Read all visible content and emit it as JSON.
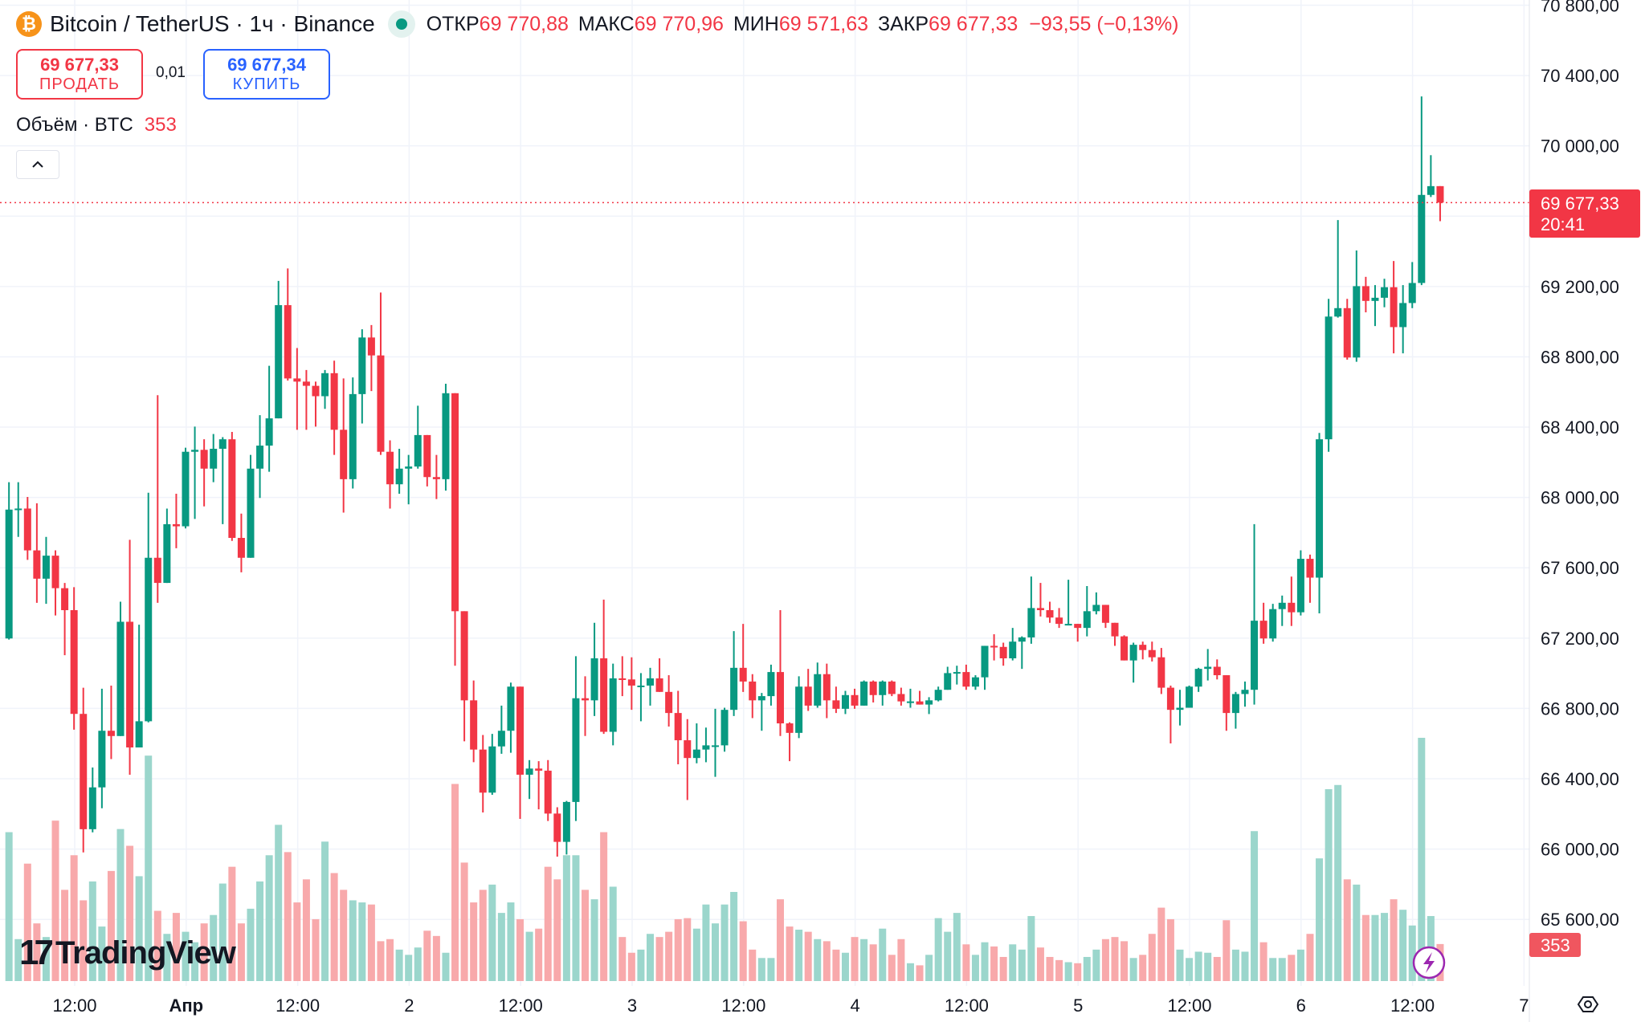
{
  "header": {
    "symbol_icon": "bitcoin-icon",
    "title": "Bitcoin / TetherUS · 1ч · Binance",
    "market_status": "open",
    "ohlc": [
      {
        "label": "ОТКР",
        "value": "69 770,88"
      },
      {
        "label": "МАКС",
        "value": "69 770,96"
      },
      {
        "label": "МИН",
        "value": "69 571,63"
      },
      {
        "label": "ЗАКР",
        "value": "69 677,33"
      }
    ],
    "change": "−93,55 (−0,13%)"
  },
  "trade": {
    "sell_price": "69 677,33",
    "sell_label": "ПРОДАТЬ",
    "spread": "0,01",
    "buy_price": "69 677,34",
    "buy_label": "КУПИТЬ"
  },
  "volume_legend": {
    "label": "Объём · BTC",
    "value": "353"
  },
  "logo": "TradingView",
  "colors": {
    "up": "#089981",
    "down": "#f23645",
    "up_volume": "#9bd6cc",
    "down_volume": "#f8a9ab",
    "grid": "#f0f3fa",
    "buy": "#2962ff"
  },
  "icons": {
    "collapse": "chevron-up-icon",
    "alerts": "lightning-icon",
    "settings": "settings-icon"
  },
  "chart_data": {
    "type": "candlestick",
    "interval": "1ч",
    "y_ticks": [
      70800,
      70400,
      70000,
      69600,
      69200,
      68800,
      68400,
      68000,
      67600,
      67200,
      66800,
      66400,
      66000,
      65600
    ],
    "y_tick_labels": [
      "70 800,00",
      "70 400,00",
      "70 000,00",
      "",
      "69 200,00",
      "68 800,00",
      "68 400,00",
      "68 000,00",
      "67 600,00",
      "67 200,00",
      "66 800,00",
      "66 400,00",
      "66 000,00",
      "65 600,00"
    ],
    "x_tick_labels": [
      "12:00",
      "Апр",
      "12:00",
      "2",
      "12:00",
      "3",
      "12:00",
      "4",
      "12:00",
      "5",
      "12:00",
      "6",
      "12:00",
      "7"
    ],
    "last_price": 69677.33,
    "last_price_label": "69 677,33",
    "countdown": "20:41",
    "last_volume_label": "353",
    "grid": true,
    "candles": [
      [
        67198,
        68087,
        67192,
        67931
      ],
      [
        67931,
        68087,
        67776,
        67937
      ],
      [
        67937,
        68003,
        67645,
        67699
      ],
      [
        67699,
        67967,
        67401,
        67538
      ],
      [
        67538,
        67776,
        67395,
        67669
      ],
      [
        67669,
        67699,
        67329,
        67484
      ],
      [
        67484,
        67514,
        67103,
        67359
      ],
      [
        67359,
        67490,
        66679,
        66769
      ],
      [
        66769,
        66918,
        65981,
        66113
      ],
      [
        66113,
        66464,
        66095,
        66351
      ],
      [
        66351,
        66912,
        66232,
        66673
      ],
      [
        66673,
        66930,
        66512,
        66643
      ],
      [
        66643,
        67407,
        66643,
        67293
      ],
      [
        67293,
        67759,
        66423,
        66578
      ],
      [
        66578,
        67276,
        66578,
        66727
      ],
      [
        66727,
        68027,
        66721,
        67657
      ],
      [
        67657,
        68582,
        67401,
        67514
      ],
      [
        67514,
        67937,
        67514,
        67848
      ],
      [
        67848,
        68021,
        67711,
        67836
      ],
      [
        67836,
        68283,
        67824,
        68260
      ],
      [
        68260,
        68403,
        67878,
        68271
      ],
      [
        68271,
        68331,
        67949,
        68164
      ],
      [
        68164,
        68361,
        68087,
        68277
      ],
      [
        68277,
        68343,
        67848,
        68331
      ],
      [
        68331,
        68373,
        67753,
        67770
      ],
      [
        67770,
        67908,
        67574,
        67657
      ],
      [
        67657,
        68242,
        67657,
        68164
      ],
      [
        68164,
        68468,
        67997,
        68295
      ],
      [
        68295,
        68749,
        68146,
        68450
      ],
      [
        68450,
        69232,
        68450,
        69094
      ],
      [
        69094,
        69303,
        68665,
        68677
      ],
      [
        68677,
        68850,
        68385,
        68659
      ],
      [
        68659,
        68725,
        68385,
        68635
      ],
      [
        68635,
        68659,
        68403,
        68576
      ],
      [
        68576,
        68725,
        68504,
        68707
      ],
      [
        68707,
        68778,
        68242,
        68385
      ],
      [
        68385,
        68677,
        67914,
        68104
      ],
      [
        68104,
        68683,
        68051,
        68588
      ],
      [
        68588,
        68957,
        68421,
        68910
      ],
      [
        68910,
        68981,
        68605,
        68808
      ],
      [
        68808,
        69166,
        68242,
        68260
      ],
      [
        68260,
        68325,
        67937,
        68075
      ],
      [
        68075,
        68277,
        68021,
        68164
      ],
      [
        68164,
        68242,
        67961,
        68176
      ],
      [
        68176,
        68522,
        68164,
        68355
      ],
      [
        68355,
        68355,
        68063,
        68116
      ],
      [
        68116,
        68242,
        67991,
        68104
      ],
      [
        68104,
        68647,
        68039,
        68593
      ],
      [
        68593,
        68593,
        67043,
        67353
      ],
      [
        67353,
        67353,
        66613,
        66846
      ],
      [
        66846,
        66959,
        66494,
        66566
      ],
      [
        66566,
        66649,
        66208,
        66321
      ],
      [
        66321,
        66655,
        66309,
        66584
      ],
      [
        66584,
        66816,
        66542,
        66673
      ],
      [
        66673,
        66947,
        66548,
        66924
      ],
      [
        66924,
        66924,
        66172,
        66423
      ],
      [
        66423,
        66506,
        66285,
        66458
      ],
      [
        66458,
        66500,
        66226,
        66446
      ],
      [
        66446,
        66506,
        66160,
        66202
      ],
      [
        66202,
        66238,
        65957,
        66041
      ],
      [
        66041,
        66274,
        65969,
        66268
      ],
      [
        66268,
        67097,
        66160,
        66858
      ],
      [
        66858,
        66983,
        66643,
        66846
      ],
      [
        66846,
        67287,
        66757,
        67085
      ],
      [
        67085,
        67419,
        66655,
        66667
      ],
      [
        66667,
        67055,
        66590,
        66971
      ],
      [
        66971,
        67097,
        66870,
        66965
      ],
      [
        66965,
        67091,
        66792,
        66930
      ],
      [
        66930,
        67001,
        66727,
        66930
      ],
      [
        66930,
        67031,
        66816,
        66971
      ],
      [
        66971,
        67085,
        66894,
        66894
      ],
      [
        66894,
        66989,
        66697,
        66774
      ],
      [
        66774,
        66900,
        66482,
        66619
      ],
      [
        66619,
        66739,
        66279,
        66518
      ],
      [
        66518,
        66715,
        66488,
        66566
      ],
      [
        66566,
        66691,
        66494,
        66590
      ],
      [
        66590,
        66798,
        66411,
        66590
      ],
      [
        66590,
        66804,
        66554,
        66792
      ],
      [
        66792,
        67240,
        66757,
        67031
      ],
      [
        67031,
        67281,
        66894,
        66953
      ],
      [
        66953,
        66995,
        66745,
        66846
      ],
      [
        66846,
        66888,
        66673,
        66870
      ],
      [
        66870,
        67049,
        66816,
        67007
      ],
      [
        67007,
        67359,
        66643,
        66715
      ],
      [
        66715,
        66721,
        66500,
        66661
      ],
      [
        66661,
        66983,
        66631,
        66924
      ],
      [
        66924,
        67025,
        66786,
        66816
      ],
      [
        66816,
        67061,
        66804,
        66995
      ],
      [
        66995,
        67055,
        66745,
        66846
      ],
      [
        66846,
        66924,
        66774,
        66798
      ],
      [
        66798,
        66900,
        66768,
        66876
      ],
      [
        66876,
        66912,
        66798,
        66816
      ],
      [
        66816,
        66959,
        66816,
        66953
      ],
      [
        66953,
        66959,
        66834,
        66876
      ],
      [
        66876,
        66959,
        66816,
        66953
      ],
      [
        66953,
        66959,
        66870,
        66882
      ],
      [
        66882,
        66918,
        66816,
        66840
      ],
      [
        66840,
        66912,
        66804,
        66840
      ],
      [
        66840,
        66900,
        66822,
        66822
      ],
      [
        66822,
        66864,
        66768,
        66846
      ],
      [
        66846,
        66924,
        66840,
        66906
      ],
      [
        66906,
        67037,
        66906,
        67001
      ],
      [
        67001,
        67043,
        66936,
        67007
      ],
      [
        67007,
        67049,
        66906,
        66924
      ],
      [
        66924,
        66989,
        66906,
        66977
      ],
      [
        66977,
        67156,
        66906,
        67156
      ],
      [
        67156,
        67222,
        67073,
        67150
      ],
      [
        67150,
        67174,
        67043,
        67085
      ],
      [
        67085,
        67258,
        67073,
        67180
      ],
      [
        67180,
        67210,
        67025,
        67204
      ],
      [
        67204,
        67550,
        67168,
        67371
      ],
      [
        67371,
        67514,
        67323,
        67359
      ],
      [
        67359,
        67407,
        67287,
        67317
      ],
      [
        67317,
        67371,
        67258,
        67281
      ],
      [
        67281,
        67532,
        67275,
        67281
      ],
      [
        67281,
        67281,
        67180,
        67258
      ],
      [
        67258,
        67496,
        67210,
        67353
      ],
      [
        67353,
        67460,
        67335,
        67389
      ],
      [
        67389,
        67389,
        67258,
        67287
      ],
      [
        67287,
        67287,
        67156,
        67210
      ],
      [
        67210,
        67216,
        67073,
        67073
      ],
      [
        67073,
        67174,
        66947,
        67162
      ],
      [
        67162,
        67180,
        67079,
        67132
      ],
      [
        67132,
        67180,
        67067,
        67091
      ],
      [
        67091,
        67144,
        66882,
        66918
      ],
      [
        66918,
        66930,
        66601,
        66792
      ],
      [
        66792,
        66906,
        66703,
        66804
      ],
      [
        66804,
        66930,
        66804,
        66924
      ],
      [
        66924,
        67031,
        66894,
        67025
      ],
      [
        67025,
        67138,
        66959,
        67037
      ],
      [
        67037,
        67079,
        66965,
        66989
      ],
      [
        66989,
        66989,
        66673,
        66774
      ],
      [
        66774,
        66894,
        66685,
        66882
      ],
      [
        66882,
        66953,
        66810,
        66906
      ],
      [
        66906,
        67848,
        66822,
        67299
      ],
      [
        67299,
        67401,
        67168,
        67198
      ],
      [
        67198,
        67395,
        67180,
        67365
      ],
      [
        67365,
        67442,
        67269,
        67401
      ],
      [
        67401,
        67550,
        67269,
        67347
      ],
      [
        67347,
        67699,
        67329,
        67651
      ],
      [
        67651,
        67675,
        67401,
        67544
      ],
      [
        67544,
        68367,
        67341,
        68331
      ],
      [
        68331,
        69130,
        68260,
        69029
      ],
      [
        69029,
        69578,
        69023,
        69077
      ],
      [
        69077,
        69130,
        68784,
        68796
      ],
      [
        68796,
        69405,
        68772,
        69202
      ],
      [
        69202,
        69255,
        69053,
        69118
      ],
      [
        69118,
        69208,
        68975,
        69136
      ],
      [
        69136,
        69244,
        69082,
        69196
      ],
      [
        69196,
        69345,
        68820,
        68969
      ],
      [
        68969,
        69208,
        68820,
        69106
      ],
      [
        69106,
        69339,
        69077,
        69220
      ],
      [
        69220,
        70281,
        69208,
        69721
      ],
      [
        69721,
        69947,
        69709,
        69770.88
      ],
      [
        69770.88,
        69770.96,
        69571.63,
        69677.33
      ]
    ],
    "volume": [
      1420,
      400,
      1120,
      550,
      420,
      1530,
      870,
      1200,
      770,
      950,
      520,
      1050,
      1450,
      1290,
      1000,
      2150,
      670,
      450,
      650,
      470,
      370,
      550,
      630,
      930,
      1090,
      550,
      690,
      950,
      1200,
      1490,
      1230,
      750,
      970,
      590,
      1330,
      1030,
      870,
      770,
      750,
      730,
      380,
      400,
      300,
      250,
      320,
      480,
      430,
      270,
      1880,
      1130,
      750,
      870,
      920,
      650,
      750,
      590,
      470,
      500,
      1090,
      970,
      1200,
      1200,
      870,
      780,
      1420,
      900,
      420,
      270,
      300,
      450,
      420,
      470,
      590,
      600,
      500,
      730,
      550,
      730,
      850,
      570,
      300,
      220,
      220,
      780,
      520,
      490,
      470,
      400,
      380,
      300,
      270,
      420,
      400,
      350,
      500,
      250,
      400,
      170,
      150,
      250,
      600,
      470,
      650,
      350,
      250,
      370,
      330,
      230,
      350,
      300,
      620,
      320,
      230,
      200,
      180,
      170,
      230,
      300,
      400,
      420,
      380,
      220,
      250,
      450,
      700,
      590,
      300,
      220,
      280,
      270,
      230,
      580,
      300,
      280,
      1430,
      370,
      220,
      220,
      250,
      300,
      450,
      1170,
      1830,
      1870,
      970,
      920,
      630,
      630,
      650,
      780,
      680,
      530,
      2320,
      620,
      353
    ]
  }
}
